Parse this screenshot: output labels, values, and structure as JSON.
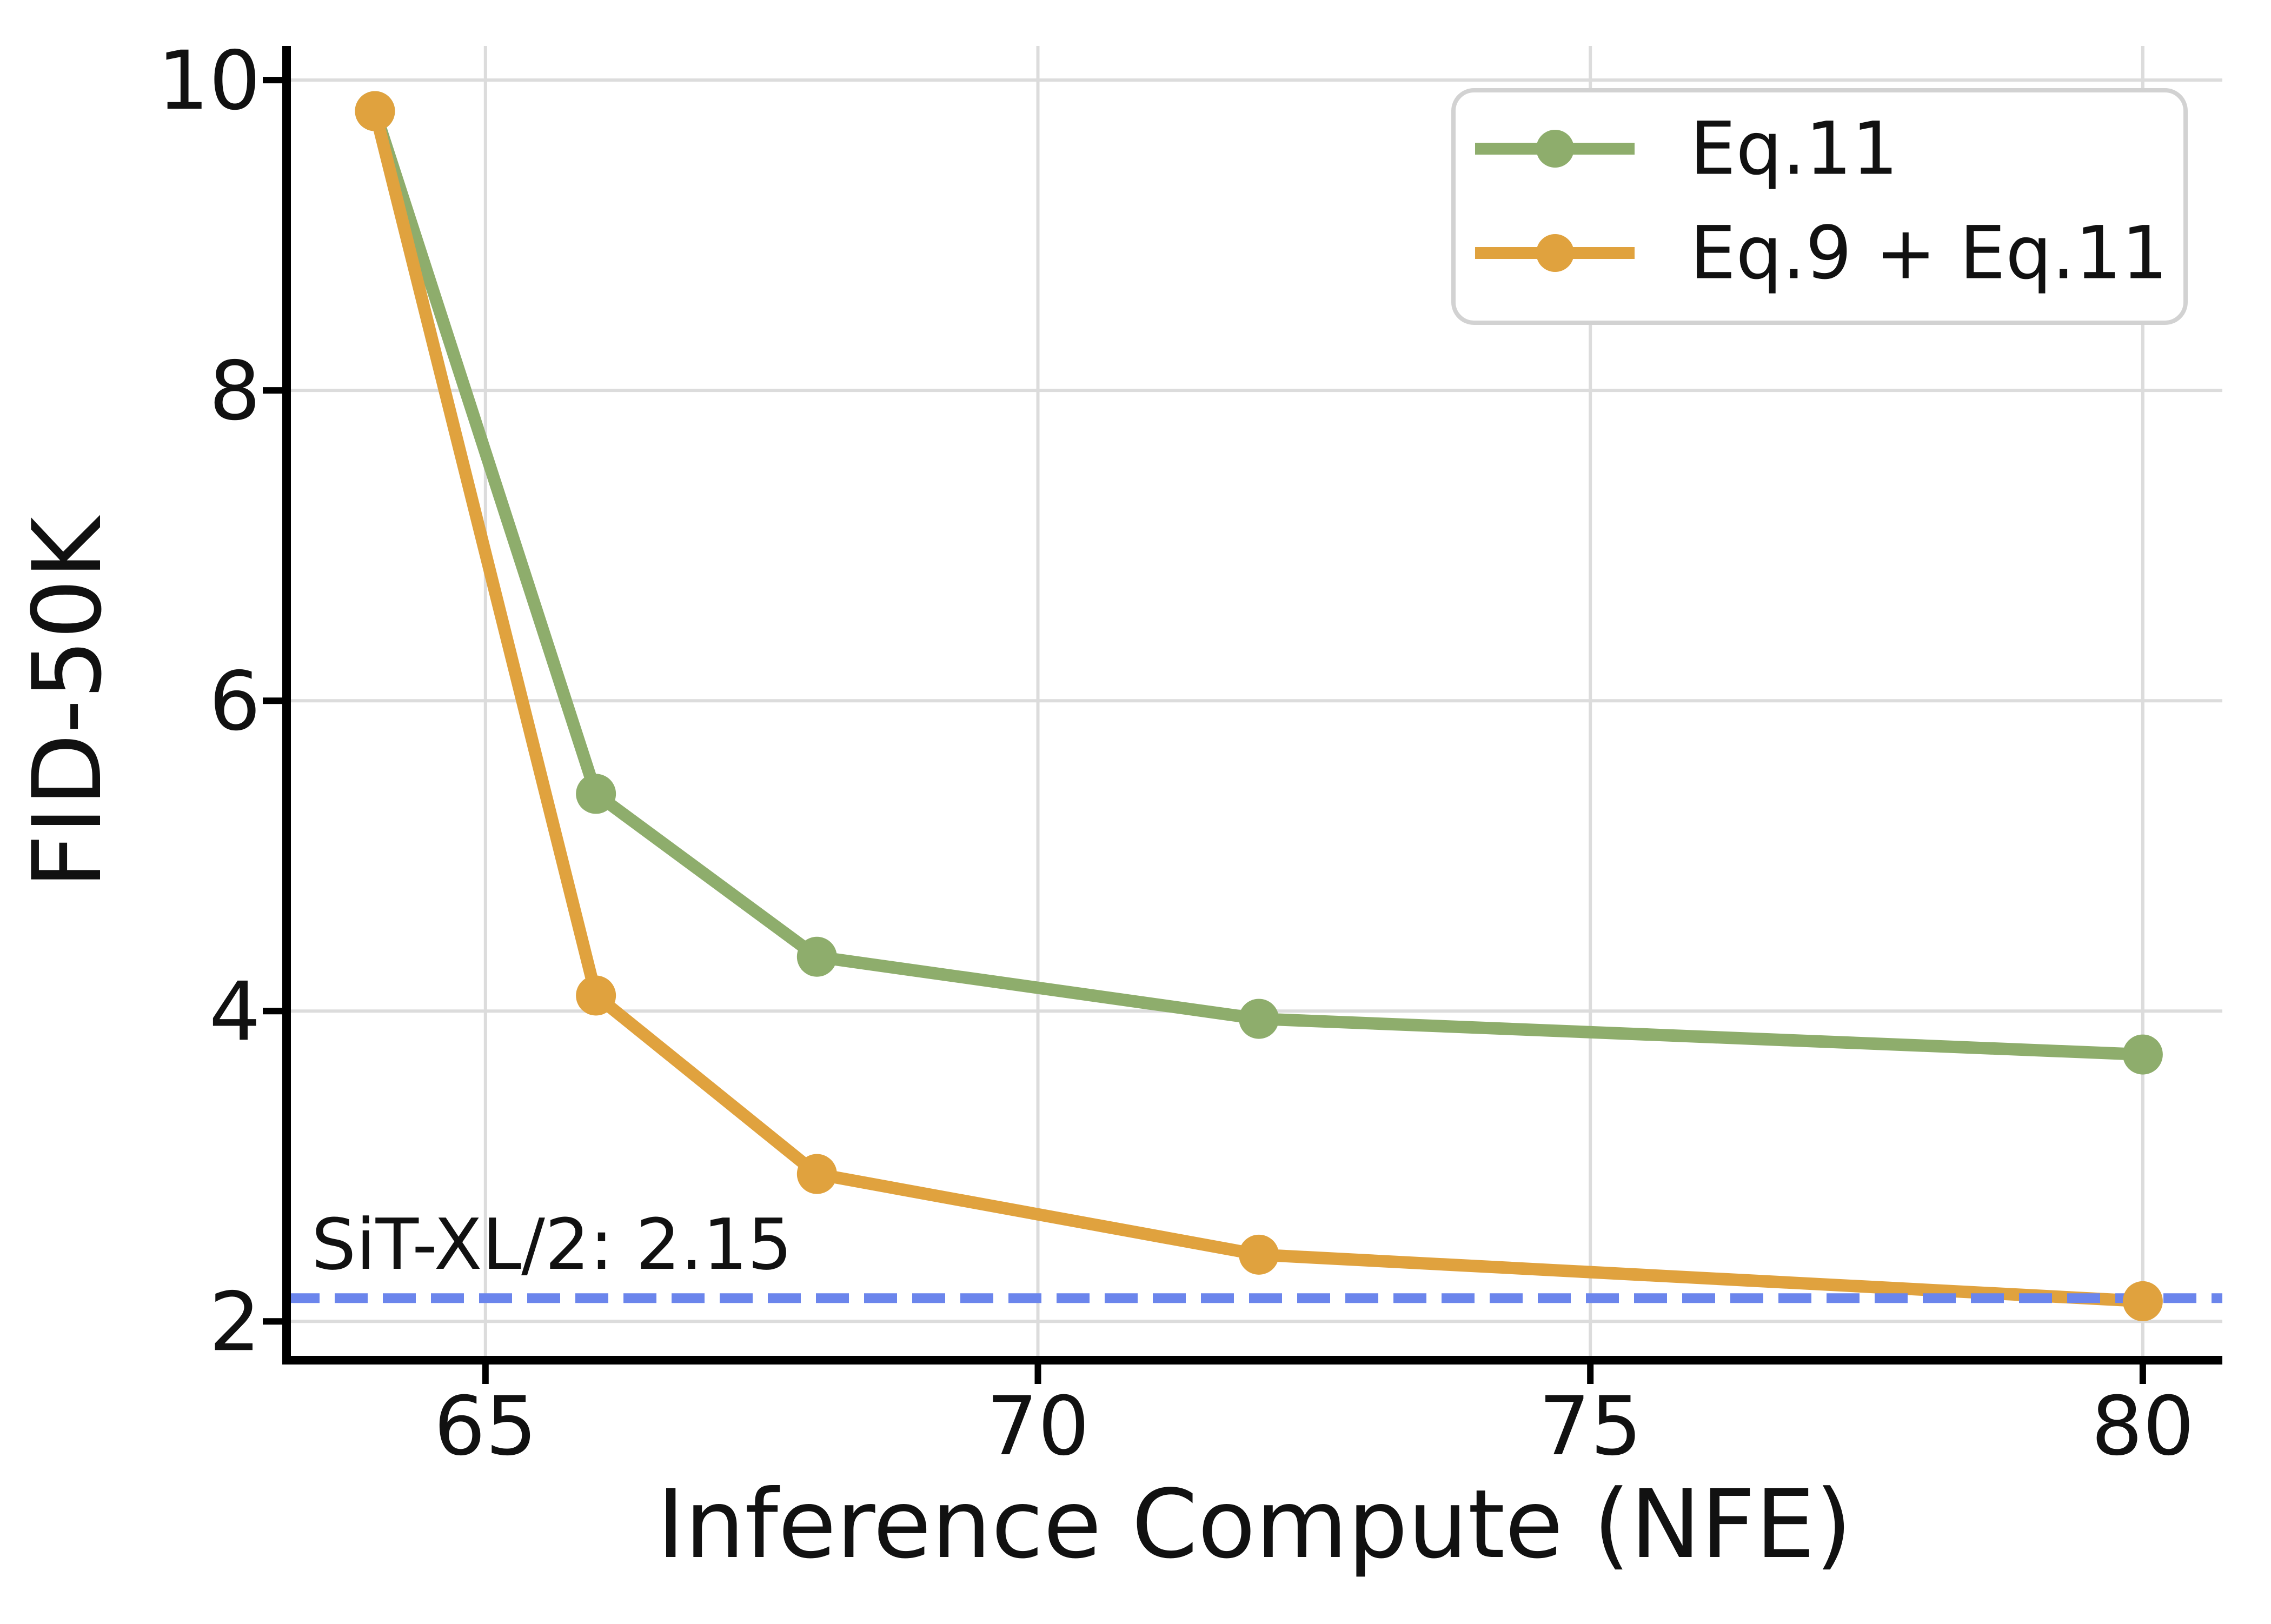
{
  "chart_data": {
    "type": "line",
    "title": "",
    "xlabel": "Inference Compute (NFE)",
    "ylabel": "FID-50K",
    "xlim": [
      63.2,
      80.72
    ],
    "ylim": [
      1.75,
      10.22
    ],
    "xticks": [
      "65",
      "70",
      "75",
      "80"
    ],
    "xtick_values": [
      65,
      70,
      75,
      80
    ],
    "yticks": [
      "2",
      "4",
      "6",
      "8",
      "10"
    ],
    "ytick_values": [
      2,
      4,
      6,
      8,
      10
    ],
    "grid": true,
    "legend_position": "upper right",
    "series": [
      {
        "name": "Eq.11",
        "color": "#8EAD6C",
        "x": [
          64,
          66,
          68,
          72,
          80
        ],
        "y": [
          9.8,
          5.4,
          4.35,
          3.95,
          3.72
        ]
      },
      {
        "name": "Eq.9 + Eq.11",
        "color": "#E0A23E",
        "x": [
          64,
          66,
          68,
          72,
          80
        ],
        "y": [
          9.8,
          4.1,
          2.95,
          2.43,
          2.13
        ]
      }
    ],
    "baseline": {
      "y": 2.15,
      "label": "SiT-XL/2: 2.15",
      "color": "#6B85EC",
      "style": "dashed"
    },
    "style_colors": {
      "grid": "#DCDCDC",
      "spine": "#000000",
      "text": "#111111",
      "legend_border": "#D2D2D2",
      "legend_fill": "#ffffff"
    }
  }
}
